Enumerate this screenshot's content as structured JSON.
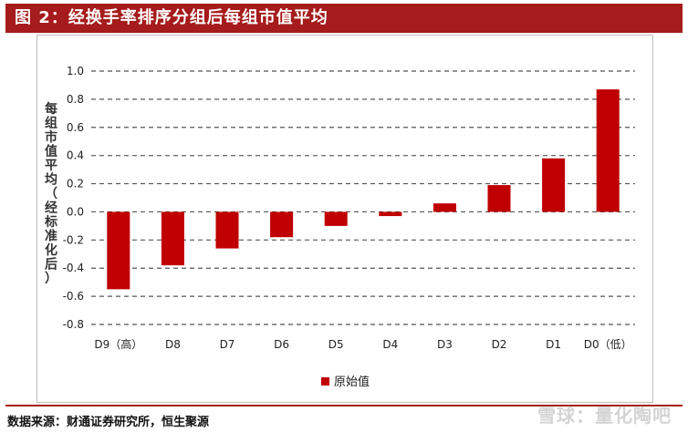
{
  "header": {
    "title": "图 2：经换手率排序分组后每组市值平均"
  },
  "footer": {
    "source": "数据来源：财通证券研究所，恒生聚源"
  },
  "watermark": {
    "text": "雪球：量化陶吧"
  },
  "chart_data": {
    "type": "bar",
    "title": "",
    "xlabel": "",
    "ylabel": "每组市值平均（经标准化后）",
    "categories": [
      "D9（高）",
      "D8",
      "D7",
      "D6",
      "D5",
      "D4",
      "D3",
      "D2",
      "D1",
      "D0（低）"
    ],
    "series": [
      {
        "name": "原始值",
        "values": [
          -0.55,
          -0.38,
          -0.26,
          -0.18,
          -0.1,
          -0.03,
          0.06,
          0.19,
          0.38,
          0.87
        ]
      }
    ],
    "ylim": [
      -0.8,
      1.0
    ],
    "yticks": [
      1.0,
      0.8,
      0.6,
      0.4,
      0.2,
      0.0,
      -0.2,
      -0.4,
      -0.6,
      -0.8
    ],
    "ytick_labels": [
      "1.0",
      "0.8",
      "0.6",
      "0.4",
      "0.2",
      "0.0",
      "-0.2",
      "-0.4",
      "-0.6",
      "-0.8"
    ],
    "grid": true,
    "legend_position": "bottom-center",
    "colors": {
      "bar": "#c00000",
      "grid": "#555555"
    }
  }
}
